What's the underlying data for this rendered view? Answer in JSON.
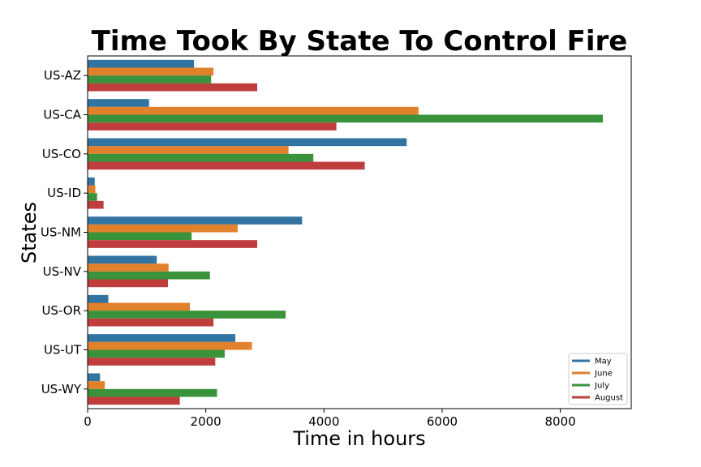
{
  "chart_data": {
    "type": "bar",
    "orientation": "horizontal",
    "title": "Time Took By State To Control Fire",
    "xlabel": "Time in hours",
    "ylabel": "States",
    "categories": [
      "US-AZ",
      "US-CA",
      "US-CO",
      "US-ID",
      "US-NM",
      "US-NV",
      "US-OR",
      "US-UT",
      "US-WY"
    ],
    "xlim": [
      0,
      9200
    ],
    "xticks": [
      0,
      2000,
      4000,
      6000,
      8000
    ],
    "series": [
      {
        "name": "May",
        "color": "#3274a1",
        "values": [
          1800,
          1040,
          5400,
          120,
          3630,
          1170,
          350,
          2500,
          210
        ]
      },
      {
        "name": "June",
        "color": "#e1812c",
        "values": [
          2130,
          5600,
          3400,
          130,
          2540,
          1370,
          1730,
          2780,
          290
        ]
      },
      {
        "name": "July",
        "color": "#3a923a",
        "values": [
          2090,
          8720,
          3820,
          160,
          1760,
          2070,
          3350,
          2320,
          2190
        ]
      },
      {
        "name": "August",
        "color": "#c03d3e",
        "values": [
          2870,
          4210,
          4690,
          270,
          2870,
          1360,
          2130,
          2160,
          1560
        ]
      }
    ],
    "grid": false,
    "legend_position": "lower-right"
  }
}
